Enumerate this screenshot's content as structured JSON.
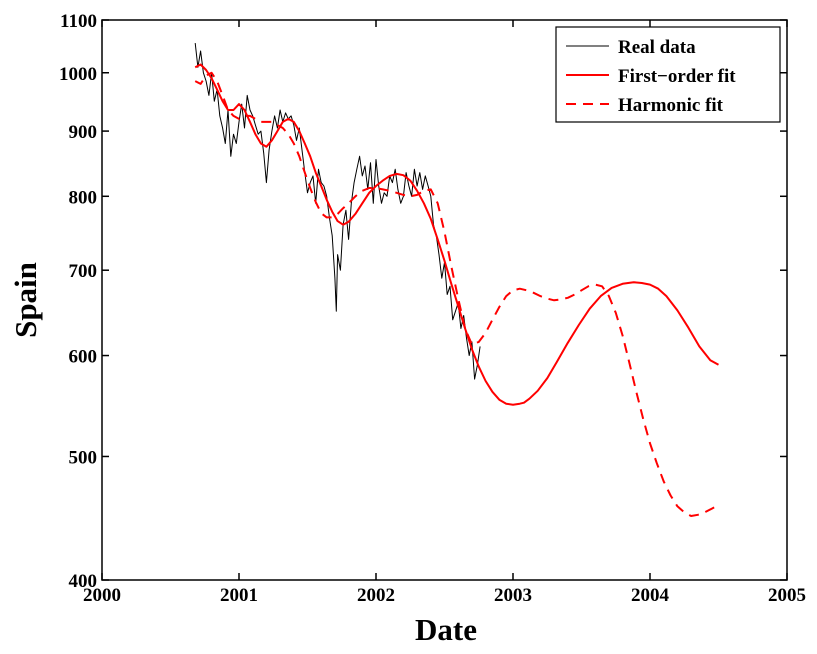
{
  "chart_data": {
    "type": "line",
    "title": "",
    "xlabel": "Date",
    "ylabel": "Spain",
    "xlim": [
      2000,
      2005
    ],
    "ylim": [
      400,
      1100
    ],
    "yscale": "log",
    "grid": false,
    "legend_position": "top-right",
    "x_ticks": [
      2000,
      2001,
      2002,
      2003,
      2004,
      2005
    ],
    "x_tick_labels": [
      "2000",
      "2001",
      "2002",
      "2003",
      "2004",
      "2005"
    ],
    "y_ticks": [
      400,
      500,
      600,
      700,
      800,
      900,
      1000,
      1100
    ],
    "y_tick_labels": [
      "400",
      "500",
      "600",
      "700",
      "800",
      "900",
      "1000",
      "1100"
    ],
    "series": [
      {
        "name": "Real data",
        "color": "#000000",
        "style": "solid",
        "x": [
          2000.68,
          2000.7,
          2000.72,
          2000.74,
          2000.76,
          2000.78,
          2000.8,
          2000.82,
          2000.84,
          2000.86,
          2000.88,
          2000.9,
          2000.92,
          2000.94,
          2000.96,
          2000.98,
          2001.0,
          2001.02,
          2001.04,
          2001.06,
          2001.08,
          2001.1,
          2001.12,
          2001.14,
          2001.16,
          2001.18,
          2001.2,
          2001.22,
          2001.24,
          2001.26,
          2001.28,
          2001.3,
          2001.32,
          2001.34,
          2001.36,
          2001.38,
          2001.4,
          2001.42,
          2001.44,
          2001.46,
          2001.48,
          2001.5,
          2001.52,
          2001.54,
          2001.56,
          2001.58,
          2001.6,
          2001.62,
          2001.64,
          2001.66,
          2001.68,
          2001.7,
          2001.71,
          2001.72,
          2001.74,
          2001.76,
          2001.78,
          2001.8,
          2001.82,
          2001.84,
          2001.86,
          2001.88,
          2001.9,
          2001.92,
          2001.94,
          2001.96,
          2001.98,
          2002.0,
          2002.02,
          2002.04,
          2002.06,
          2002.08,
          2002.1,
          2002.12,
          2002.14,
          2002.16,
          2002.18,
          2002.2,
          2002.22,
          2002.24,
          2002.26,
          2002.28,
          2002.3,
          2002.32,
          2002.34,
          2002.36,
          2002.38,
          2002.4,
          2002.42,
          2002.44,
          2002.46,
          2002.48,
          2002.5,
          2002.52,
          2002.54,
          2002.56,
          2002.58,
          2002.6,
          2002.62,
          2002.64,
          2002.66,
          2002.68,
          2002.7,
          2002.72,
          2002.74,
          2002.76
        ],
        "y": [
          1055,
          1010,
          1040,
          1000,
          985,
          960,
          1000,
          950,
          970,
          925,
          905,
          880,
          935,
          860,
          895,
          880,
          915,
          945,
          905,
          960,
          935,
          925,
          910,
          895,
          900,
          865,
          820,
          870,
          900,
          925,
          905,
          935,
          915,
          930,
          920,
          925,
          910,
          885,
          905,
          870,
          835,
          805,
          820,
          830,
          790,
          840,
          820,
          815,
          800,
          770,
          745,
          690,
          650,
          720,
          700,
          760,
          780,
          740,
          790,
          820,
          840,
          860,
          830,
          845,
          810,
          850,
          790,
          855,
          815,
          790,
          805,
          800,
          830,
          820,
          840,
          810,
          790,
          800,
          835,
          815,
          800,
          840,
          815,
          835,
          810,
          830,
          815,
          800,
          760,
          745,
          720,
          690,
          710,
          670,
          680,
          640,
          650,
          660,
          630,
          645,
          620,
          600,
          615,
          575,
          590,
          610
        ]
      },
      {
        "name": "First−order fit",
        "color": "#ff0000",
        "style": "solid",
        "x": [
          2000.68,
          2000.72,
          2000.76,
          2000.8,
          2000.84,
          2000.88,
          2000.92,
          2000.96,
          2001.0,
          2001.04,
          2001.08,
          2001.12,
          2001.16,
          2001.2,
          2001.24,
          2001.28,
          2001.32,
          2001.36,
          2001.4,
          2001.44,
          2001.48,
          2001.52,
          2001.56,
          2001.6,
          2001.64,
          2001.68,
          2001.72,
          2001.76,
          2001.8,
          2001.85,
          2001.9,
          2001.95,
          2002.0,
          2002.05,
          2002.1,
          2002.15,
          2002.2,
          2002.25,
          2002.3,
          2002.35,
          2002.4,
          2002.45,
          2002.5,
          2002.55,
          2002.6,
          2002.65,
          2002.7,
          2002.75,
          2002.8,
          2002.85,
          2002.9,
          2002.95,
          2003.0,
          2003.05,
          2003.08,
          2003.12,
          2003.18,
          2003.25,
          2003.32,
          2003.4,
          2003.48,
          2003.56,
          2003.64,
          2003.72,
          2003.8,
          2003.88,
          2003.94,
          2004.0,
          2004.06,
          2004.12,
          2004.2,
          2004.28,
          2004.36,
          2004.44,
          2004.5
        ],
        "y": [
          1010,
          1015,
          1005,
          990,
          970,
          950,
          935,
          935,
          945,
          935,
          915,
          895,
          880,
          875,
          885,
          900,
          915,
          920,
          915,
          900,
          880,
          860,
          835,
          815,
          795,
          778,
          765,
          760,
          764,
          775,
          790,
          805,
          815,
          823,
          830,
          833,
          831,
          823,
          808,
          790,
          768,
          740,
          712,
          683,
          656,
          630,
          607,
          588,
          573,
          562,
          554,
          550,
          549,
          550,
          551,
          555,
          563,
          576,
          593,
          614,
          634,
          653,
          668,
          678,
          683,
          685,
          684,
          682,
          677,
          668,
          651,
          631,
          610,
          595,
          590
        ]
      },
      {
        "name": "Harmonic fit",
        "color": "#ff0000",
        "style": "dashed",
        "x": [
          2000.68,
          2000.72,
          2000.76,
          2000.8,
          2000.84,
          2000.88,
          2000.92,
          2000.96,
          2001.0,
          2001.04,
          2001.08,
          2001.12,
          2001.16,
          2001.2,
          2001.24,
          2001.28,
          2001.32,
          2001.36,
          2001.4,
          2001.44,
          2001.48,
          2001.52,
          2001.56,
          2001.6,
          2001.64,
          2001.68,
          2001.72,
          2001.76,
          2001.8,
          2001.85,
          2001.9,
          2001.95,
          2002.0,
          2002.05,
          2002.1,
          2002.15,
          2002.2,
          2002.25,
          2002.3,
          2002.35,
          2002.4,
          2002.45,
          2002.5,
          2002.55,
          2002.6,
          2002.65,
          2002.7,
          2002.75,
          2002.8,
          2002.85,
          2002.9,
          2002.95,
          2003.0,
          2003.05,
          2003.1,
          2003.15,
          2003.2,
          2003.25,
          2003.3,
          2003.35,
          2003.4,
          2003.45,
          2003.5,
          2003.55,
          2003.6,
          2003.65,
          2003.7,
          2003.75,
          2003.8,
          2003.85,
          2003.9,
          2003.95,
          2004.0,
          2004.05,
          2004.1,
          2004.15,
          2004.2,
          2004.25,
          2004.3,
          2004.35,
          2004.4,
          2004.45,
          2004.5
        ],
        "y": [
          985,
          980,
          995,
          1000,
          985,
          960,
          935,
          925,
          920,
          925,
          925,
          920,
          915,
          915,
          915,
          910,
          905,
          895,
          880,
          860,
          835,
          812,
          792,
          776,
          770,
          770,
          775,
          783,
          790,
          800,
          808,
          812,
          812,
          810,
          808,
          805,
          802,
          800,
          802,
          808,
          810,
          790,
          750,
          705,
          665,
          630,
          612,
          615,
          625,
          640,
          655,
          668,
          675,
          677,
          675,
          672,
          668,
          665,
          663,
          664,
          666,
          670,
          675,
          680,
          682,
          680,
          668,
          648,
          622,
          592,
          562,
          535,
          512,
          494,
          478,
          466,
          457,
          452,
          449,
          450,
          452,
          455,
          458
        ]
      }
    ]
  }
}
